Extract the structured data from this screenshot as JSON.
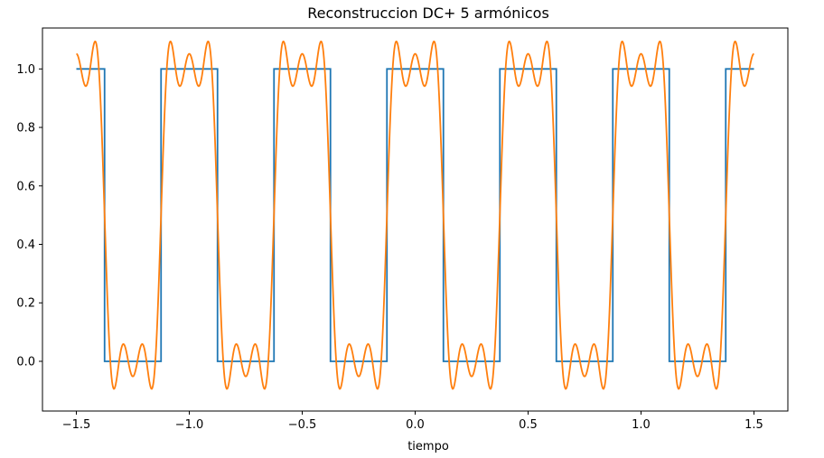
{
  "chart_data": {
    "type": "line",
    "title": "Reconstruccion DC+  5 armónicos",
    "xlabel": "tiempo",
    "ylabel": "",
    "xlim": [
      -1.65,
      1.65
    ],
    "ylim": [
      -0.17,
      1.14
    ],
    "grid": false,
    "x_ticks": [
      -1.5,
      -1.0,
      -0.5,
      0.0,
      0.5,
      1.0,
      1.5
    ],
    "x_tick_labels": [
      "−1.5",
      "−1.0",
      "−0.5",
      "0.0",
      "0.5",
      "1.0",
      "1.5"
    ],
    "y_ticks": [
      0.0,
      0.2,
      0.4,
      0.6,
      0.8,
      1.0
    ],
    "y_tick_labels": [
      "0.0",
      "0.2",
      "0.4",
      "0.6",
      "0.8",
      "1.0"
    ],
    "series": [
      {
        "kind": "square-wave",
        "color": "#1f77b4",
        "x": [
          -1.5,
          -1.375,
          -1.375,
          -1.125,
          -1.125,
          -0.875,
          -0.875,
          -0.625,
          -0.625,
          -0.375,
          -0.375,
          -0.125,
          -0.125,
          0.125,
          0.125,
          0.375,
          0.375,
          0.625,
          0.625,
          0.875,
          0.875,
          1.125,
          1.125,
          1.375,
          1.375,
          1.5
        ],
        "values": [
          1,
          1,
          0,
          0,
          1,
          1,
          0,
          0,
          1,
          1,
          0,
          0,
          1,
          1,
          0,
          0,
          1,
          1,
          0,
          0,
          1,
          1,
          0,
          0,
          1,
          1
        ]
      },
      {
        "kind": "fourier-reconstruction",
        "color": "#ff7f0e",
        "x_start": -1.5,
        "x_end": 1.5,
        "period": 0.5,
        "dc": 0.5,
        "harmonics": 5
      }
    ]
  }
}
